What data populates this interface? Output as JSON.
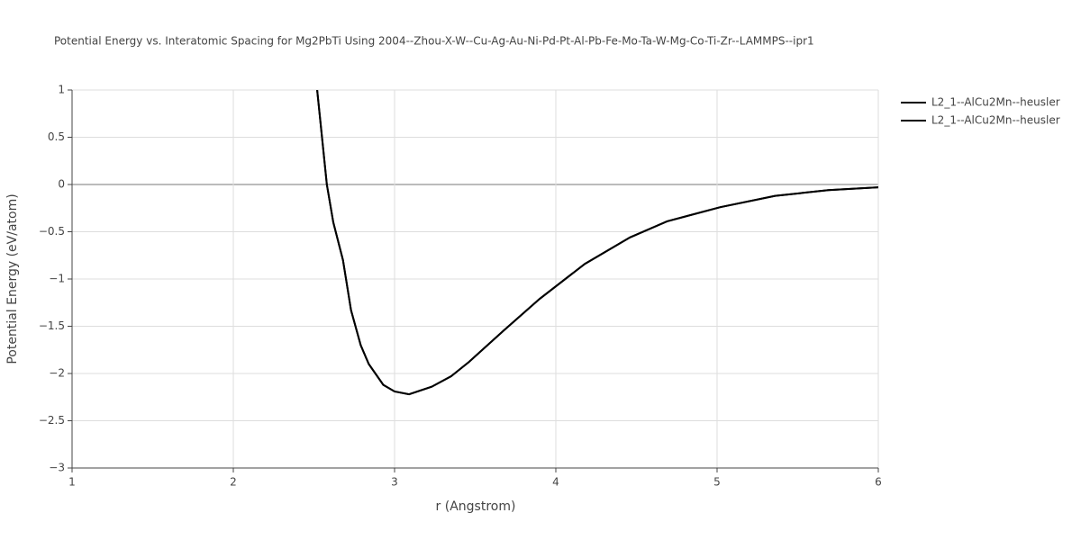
{
  "chart_data": {
    "type": "line",
    "title": "Potential Energy vs. Interatomic Spacing for Mg2PbTi Using 2004--Zhou-X-W--Cu-Ag-Au-Ni-Pd-Pt-Al-Pb-Fe-Mo-Ta-W-Mg-Co-Ti-Zr--LAMMPS--ipr1",
    "x_label": "r (Angstrom)",
    "y_label": "Potential Energy (eV/atom)",
    "x": [
      2.52,
      2.55,
      2.58,
      2.62,
      2.68,
      2.73,
      2.79,
      2.84,
      2.93,
      3.0,
      3.09,
      3.23,
      3.35,
      3.46,
      3.68,
      3.9,
      4.18,
      4.46,
      4.69,
      5.02,
      5.36,
      5.69,
      6.0
    ],
    "series": [
      {
        "name": "L2_1--AlCu2Mn--heusler",
        "color": "#000000",
        "values": [
          1.0,
          0.5,
          0.0,
          -0.4,
          -0.8,
          -1.33,
          -1.7,
          -1.9,
          -2.12,
          -2.19,
          -2.22,
          -2.14,
          -2.03,
          -1.88,
          -1.54,
          -1.21,
          -0.84,
          -0.56,
          -0.39,
          -0.24,
          -0.12,
          -0.06,
          -0.03
        ]
      },
      {
        "name": "L2_1--AlCu2Mn--heusler",
        "color": "#000000",
        "values": [
          1.0,
          0.5,
          0.0,
          -0.4,
          -0.8,
          -1.33,
          -1.7,
          -1.9,
          -2.12,
          -2.19,
          -2.22,
          -2.14,
          -2.03,
          -1.88,
          -1.54,
          -1.21,
          -0.84,
          -0.56,
          -0.39,
          -0.24,
          -0.12,
          -0.06,
          -0.03
        ]
      }
    ],
    "xlim": [
      1,
      6
    ],
    "xticks": [
      1,
      2,
      3,
      4,
      5,
      6
    ],
    "ylim": [
      -3,
      1
    ],
    "yticks": [
      {
        "value": -3,
        "label": "−3"
      },
      {
        "value": -2.5,
        "label": "−2.5"
      },
      {
        "value": -2,
        "label": "−2"
      },
      {
        "value": -1.5,
        "label": "−1.5"
      },
      {
        "value": -1,
        "label": "−1"
      },
      {
        "value": -0.5,
        "label": "−0.5"
      },
      0,
      0.5,
      1
    ],
    "grid": true,
    "legend": "right"
  }
}
